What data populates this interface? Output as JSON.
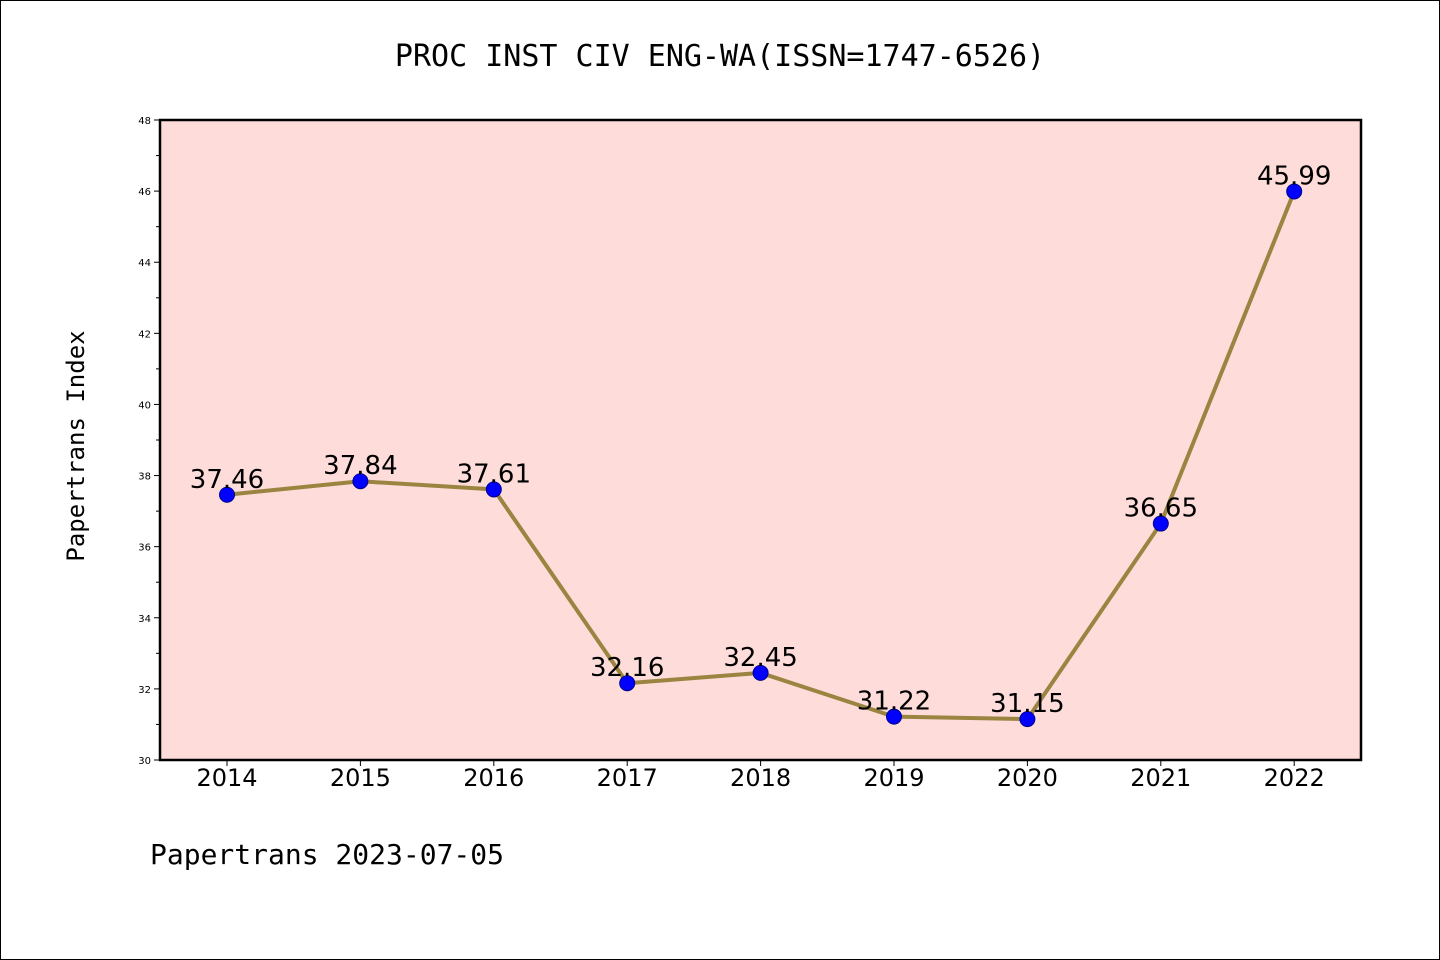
{
  "chart_data": {
    "type": "line",
    "title": "PROC INST CIV ENG-WA(ISSN=1747-6526)",
    "ylabel": "Papertrans Index",
    "xlabel": "",
    "footer": "Papertrans 2023-07-05",
    "categories": [
      "2014",
      "2015",
      "2016",
      "2017",
      "2018",
      "2019",
      "2020",
      "2021",
      "2022"
    ],
    "series": [
      {
        "values": [
          37.46,
          37.84,
          37.61,
          32.16,
          32.45,
          31.22,
          31.15,
          36.65,
          45.99
        ],
        "labels": [
          "37.46",
          "37.84",
          "37.61",
          "32.16",
          "32.45",
          "31.22",
          "31.15",
          "36.65",
          "45.99"
        ]
      }
    ],
    "ylim": [
      30,
      48
    ],
    "yticks": [
      "30",
      "32",
      "34",
      "36",
      "38",
      "40",
      "42",
      "44",
      "46",
      "48"
    ],
    "grid": false,
    "colors": {
      "plot_background": "#fddcda",
      "line": "#9a8440",
      "marker": "#0000ff",
      "marker_edge": "#00008b"
    }
  }
}
